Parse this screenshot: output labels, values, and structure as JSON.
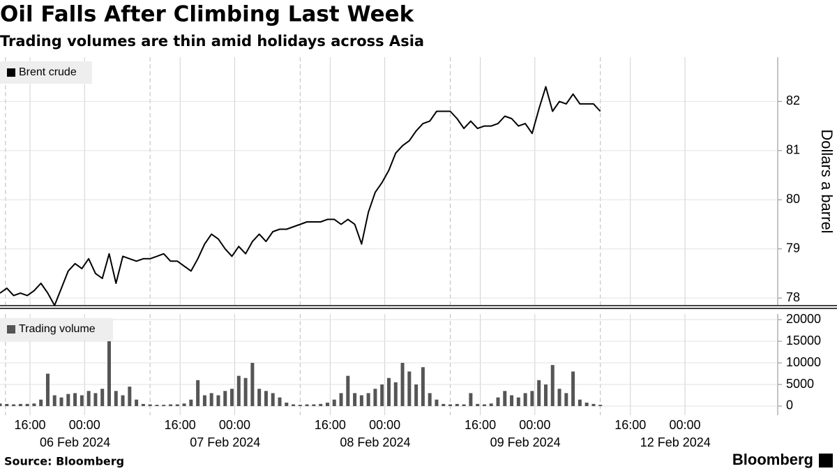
{
  "title": "Oil Falls After Climbing Last Week",
  "subtitle": "Trading volumes are thin amid holidays across Asia",
  "source": "Source: Bloomberg",
  "brand": "Bloomberg",
  "chart_data": [
    {
      "type": "line",
      "ylabel": "Dollars a barrel",
      "xlim": [
        0,
        114
      ],
      "x": [
        0,
        1,
        2,
        3,
        4,
        5,
        6,
        7,
        8,
        9,
        10,
        11,
        12,
        13,
        14,
        15,
        16,
        17,
        18,
        19,
        20,
        21,
        22,
        23,
        24,
        25,
        26,
        27,
        28,
        29,
        30,
        31,
        32,
        33,
        34,
        35,
        36,
        37,
        38,
        39,
        40,
        41,
        42,
        43,
        44,
        45,
        46,
        47,
        48,
        49,
        50,
        51,
        52,
        53,
        54,
        55,
        56,
        57,
        58,
        59,
        60,
        61,
        62,
        63,
        64,
        65,
        66,
        67,
        68,
        69,
        70,
        71,
        72,
        73,
        74,
        75,
        76,
        77,
        78,
        79,
        80,
        81,
        82,
        83,
        84,
        85,
        86,
        87,
        88
      ],
      "series": [
        {
          "name": "Brent crude",
          "color": "#000000",
          "values": [
            78.1,
            78.2,
            78.05,
            78.1,
            78.05,
            78.15,
            78.3,
            78.1,
            77.85,
            78.2,
            78.55,
            78.7,
            78.6,
            78.8,
            78.5,
            78.4,
            78.9,
            78.3,
            78.85,
            78.8,
            78.75,
            78.8,
            78.8,
            78.85,
            78.9,
            78.75,
            78.75,
            78.65,
            78.55,
            78.8,
            79.1,
            79.3,
            79.2,
            79.0,
            78.85,
            79.05,
            78.9,
            79.15,
            79.3,
            79.15,
            79.35,
            79.4,
            79.4,
            79.45,
            79.5,
            79.55,
            79.55,
            79.55,
            79.6,
            79.6,
            79.5,
            79.6,
            79.5,
            79.1,
            79.75,
            80.15,
            80.35,
            80.6,
            80.95,
            81.1,
            81.2,
            81.4,
            81.55,
            81.6,
            81.8,
            81.8,
            81.8,
            81.65,
            81.45,
            81.6,
            81.45,
            81.5,
            81.5,
            81.55,
            81.7,
            81.65,
            81.5,
            81.55,
            81.35,
            81.85,
            82.3,
            81.8,
            82.0,
            81.95,
            82.15,
            81.95,
            81.95,
            81.95,
            81.8
          ]
        }
      ],
      "ylim": [
        77.86,
        82.9
      ],
      "yticks": [
        78,
        79,
        80,
        81,
        82
      ],
      "grid": true
    },
    {
      "type": "bar",
      "xlim": [
        0,
        114
      ],
      "x": [
        0,
        1,
        2,
        3,
        4,
        5,
        6,
        7,
        8,
        9,
        10,
        11,
        12,
        13,
        14,
        15,
        16,
        17,
        18,
        19,
        20,
        21,
        22,
        23,
        24,
        25,
        26,
        27,
        28,
        29,
        30,
        31,
        32,
        33,
        34,
        35,
        36,
        37,
        38,
        39,
        40,
        41,
        42,
        43,
        44,
        45,
        46,
        47,
        48,
        49,
        50,
        51,
        52,
        53,
        54,
        55,
        56,
        57,
        58,
        59,
        60,
        61,
        62,
        63,
        64,
        65,
        66,
        67,
        68,
        69,
        70,
        71,
        72,
        73,
        74,
        75,
        76,
        77,
        78,
        79,
        80,
        81,
        82,
        83,
        84,
        85,
        86,
        87,
        88
      ],
      "series": [
        {
          "name": "Trading volume",
          "color": "#555555",
          "values": [
            600,
            500,
            400,
            500,
            500,
            600,
            1500,
            7500,
            2500,
            2000,
            2800,
            3000,
            2500,
            3500,
            3000,
            4000,
            15000,
            3500,
            2500,
            4500,
            1500,
            500,
            400,
            300,
            300,
            400,
            400,
            600,
            1500,
            6000,
            2500,
            3000,
            2500,
            3500,
            4000,
            7000,
            6500,
            10000,
            4000,
            3500,
            3000,
            2000,
            800,
            400,
            300,
            400,
            400,
            500,
            800,
            1500,
            3000,
            7000,
            3000,
            2500,
            3000,
            4000,
            5000,
            6500,
            5500,
            10000,
            8000,
            5000,
            9000,
            3000,
            1500,
            500,
            400,
            500,
            400,
            3000,
            500,
            400,
            600,
            2000,
            3500,
            2500,
            2000,
            3000,
            3500,
            6000,
            5000,
            9500,
            4000,
            3000,
            8000,
            1500,
            800,
            500,
            300
          ]
        }
      ],
      "ylim": [
        -2100,
        21300
      ],
      "yticks": [
        0,
        5000,
        10000,
        15000,
        20000
      ],
      "xticks": [
        {
          "value": 4.4,
          "label": "16:00"
        },
        {
          "value": 12.4,
          "label": "00:00"
        },
        {
          "value": 26.4,
          "label": "16:00"
        },
        {
          "value": 34.4,
          "label": "00:00"
        },
        {
          "value": 48.4,
          "label": "16:00"
        },
        {
          "value": 56.4,
          "label": "00:00"
        },
        {
          "value": 70.4,
          "label": "16:00"
        },
        {
          "value": 78.4,
          "label": "00:00"
        },
        {
          "value": 92.4,
          "label": "16:00"
        },
        {
          "value": 100.4,
          "label": "00:00"
        }
      ],
      "date_labels": [
        {
          "value": 11,
          "label": "06 Feb 2024"
        },
        {
          "value": 33,
          "label": "07 Feb 2024"
        },
        {
          "value": 55,
          "label": "08 Feb 2024"
        },
        {
          "value": 77,
          "label": "09 Feb 2024"
        },
        {
          "value": 99,
          "label": "12 Feb 2024"
        }
      ],
      "session_breaks": [
        0.8,
        22,
        44,
        66,
        88
      ],
      "grid": true
    }
  ]
}
